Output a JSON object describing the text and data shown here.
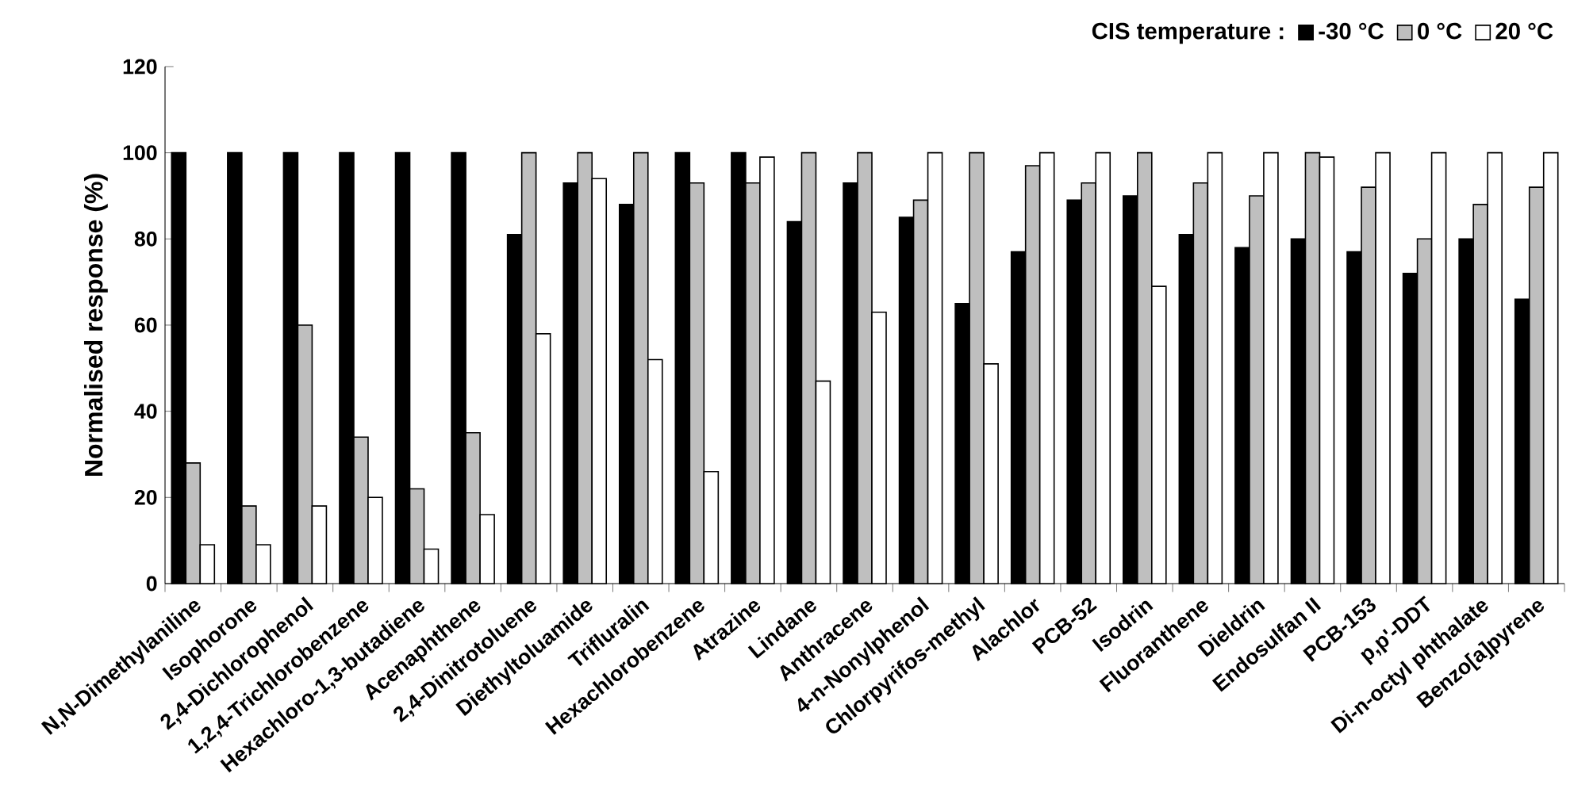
{
  "chart_data": {
    "type": "bar",
    "ylabel": "Normalised response (%)",
    "legend_title": "CIS temperature :",
    "categories": [
      "N,N-Dimethylaniline",
      "Isophorone",
      "2,4-Dichlorophenol",
      "1,2,4-Trichlorobenzene",
      "Hexachloro-1,3-butadiene",
      "Acenaphthene",
      "2,4-Dinitrotoluene",
      "Diethyltoluamide",
      "Trifluralin",
      "Hexachlorobenzene",
      "Atrazine",
      "Lindane",
      "Anthracene",
      "4-n-Nonylphenol",
      "Chlorpyrifos-methyl",
      "Alachlor",
      "PCB-52",
      "Isodrin",
      "Fluoranthene",
      "Dieldrin",
      "Endosulfan II",
      "PCB-153",
      "p,p'-DDT",
      "Di-n-octyl phthalate",
      "Benzo[a]pyrene"
    ],
    "series": [
      {
        "name": "-30 °C",
        "color": "#000000",
        "values": [
          100,
          100,
          100,
          100,
          100,
          100,
          81,
          93,
          88,
          100,
          100,
          84,
          93,
          85,
          65,
          77,
          89,
          90,
          81,
          78,
          80,
          77,
          72,
          80,
          66
        ]
      },
      {
        "name": "0 °C",
        "color": "#bfbfbf",
        "values": [
          28,
          18,
          60,
          34,
          22,
          35,
          100,
          100,
          100,
          93,
          93,
          100,
          100,
          89,
          100,
          97,
          93,
          100,
          93,
          90,
          100,
          92,
          80,
          88,
          92
        ]
      },
      {
        "name": "20 °C",
        "color": "#ffffff",
        "values": [
          9,
          9,
          18,
          20,
          8,
          16,
          58,
          94,
          52,
          26,
          99,
          47,
          63,
          100,
          51,
          100,
          100,
          69,
          100,
          100,
          99,
          100,
          100,
          100,
          100
        ]
      }
    ],
    "ylim": [
      0,
      120
    ],
    "yticks": [
      0,
      20,
      40,
      60,
      80,
      100,
      120
    ],
    "grid": false,
    "legend": "top right"
  }
}
